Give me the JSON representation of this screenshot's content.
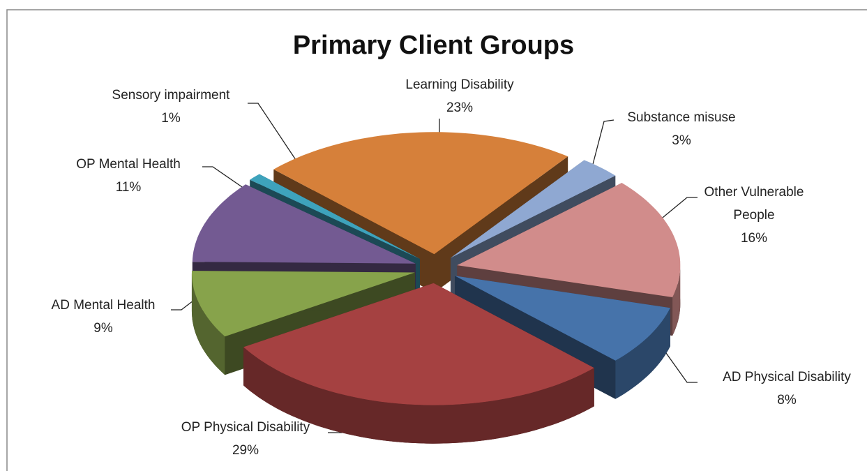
{
  "chart_data": {
    "type": "pie",
    "title": "Primary Client Groups",
    "categories": [
      "Learning Disability",
      "Substance misuse",
      "Other Vulnerable People",
      "AD Physical Disability",
      "OP Physical Disability",
      "AD Mental Health",
      "OP Mental Health",
      "Sensory impairment"
    ],
    "values": [
      23,
      3,
      16,
      8,
      29,
      9,
      11,
      1
    ],
    "value_labels": [
      "23%",
      "3%",
      "16%",
      "8%",
      "29%",
      "9%",
      "11%",
      "1%"
    ],
    "colors": [
      "#d6803a",
      "#8fa8d2",
      "#d18c8b",
      "#4673aa",
      "#a54141",
      "#87a34b",
      "#735a92",
      "#3ea3bc"
    ]
  }
}
